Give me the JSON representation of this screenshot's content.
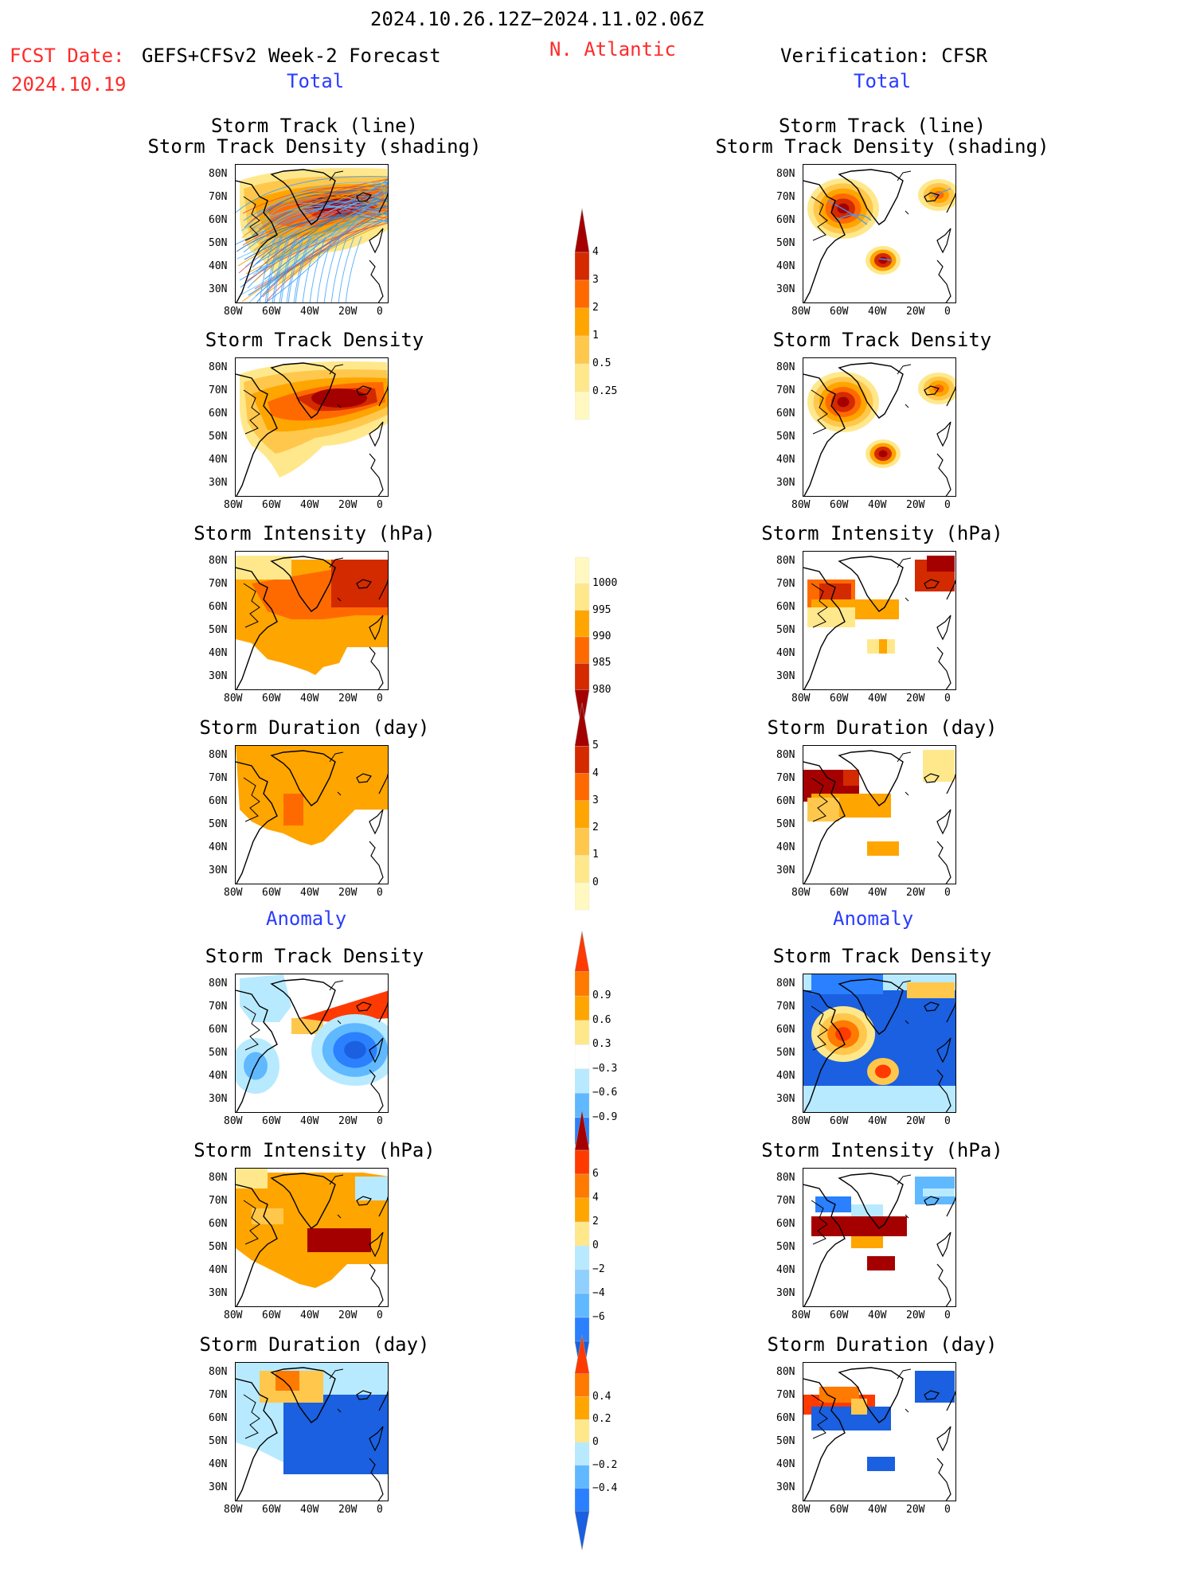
{
  "header": {
    "date_range": "2024.10.26.12Z−2024.11.02.06Z",
    "fcst_label": "FCST Date:",
    "fcst_model": "GEFS+CFSv2 Week-2 Forecast",
    "fcst_date": "2024.10.19",
    "region": "N. Atlantic",
    "verification": "Verification: CFSR"
  },
  "columns": {
    "left_section_total": "Total",
    "right_section_total": "Total",
    "left_section_anomaly": "Anomaly",
    "right_section_anomaly": "Anomaly"
  },
  "panels": {
    "track_line_title1": "Storm Track (line)",
    "track_line_title2": "Storm Track Density (shading)",
    "density": "Storm Track Density",
    "intensity": "Storm Intensity (hPa)",
    "duration": "Storm Duration (day)"
  },
  "axes": {
    "lat": [
      "80N",
      "70N",
      "60N",
      "50N",
      "40N",
      "30N"
    ],
    "lon": [
      "80W",
      "60W",
      "40W",
      "20W",
      "0"
    ]
  },
  "colorbars": {
    "density_total": {
      "labels": [
        "4",
        "3",
        "2",
        "1",
        "0.5",
        "0.25"
      ],
      "colors": [
        "#a50000",
        "#d42a00",
        "#ff6a00",
        "#ffa500",
        "#ffc84d",
        "#ffe88c",
        "#fff8c0"
      ]
    },
    "intensity_total": {
      "labels": [
        "1000",
        "995",
        "990",
        "985",
        "980"
      ],
      "colors": [
        "#fff8c0",
        "#ffe88c",
        "#ffa500",
        "#ff6a00",
        "#d42a00",
        "#a50000"
      ]
    },
    "duration_total": {
      "labels": [
        "5",
        "4",
        "3",
        "2",
        "1",
        "0"
      ],
      "colors": [
        "#a50000",
        "#d42a00",
        "#ff6a00",
        "#ffa500",
        "#ffc84d",
        "#ffe88c",
        "#fff8c0"
      ]
    },
    "density_anom": {
      "labels": [
        "0.9",
        "0.6",
        "0.3",
        "−0.3",
        "−0.6",
        "−0.9"
      ],
      "colors": [
        "#ff3a00",
        "#ff7a00",
        "#ffa500",
        "#ffe88c",
        "#ffffff",
        "#b8eaff",
        "#60b8ff",
        "#2a80ff",
        "#1a60e0"
      ]
    },
    "intensity_anom": {
      "labels": [
        "6",
        "4",
        "2",
        "0",
        "−2",
        "−4",
        "−6"
      ],
      "colors": [
        "#a50000",
        "#ff3a00",
        "#ff7a00",
        "#ffa500",
        "#ffe88c",
        "#b8eaff",
        "#90d0ff",
        "#60b8ff",
        "#2a80ff",
        "#1a60e0"
      ]
    },
    "duration_anom": {
      "labels": [
        "0.4",
        "0.2",
        "0",
        "−0.2",
        "−0.4"
      ],
      "colors": [
        "#ff3a00",
        "#ff7a00",
        "#ffa500",
        "#ffe88c",
        "#b8eaff",
        "#60b8ff",
        "#2a80ff",
        "#1a60e0"
      ]
    }
  }
}
